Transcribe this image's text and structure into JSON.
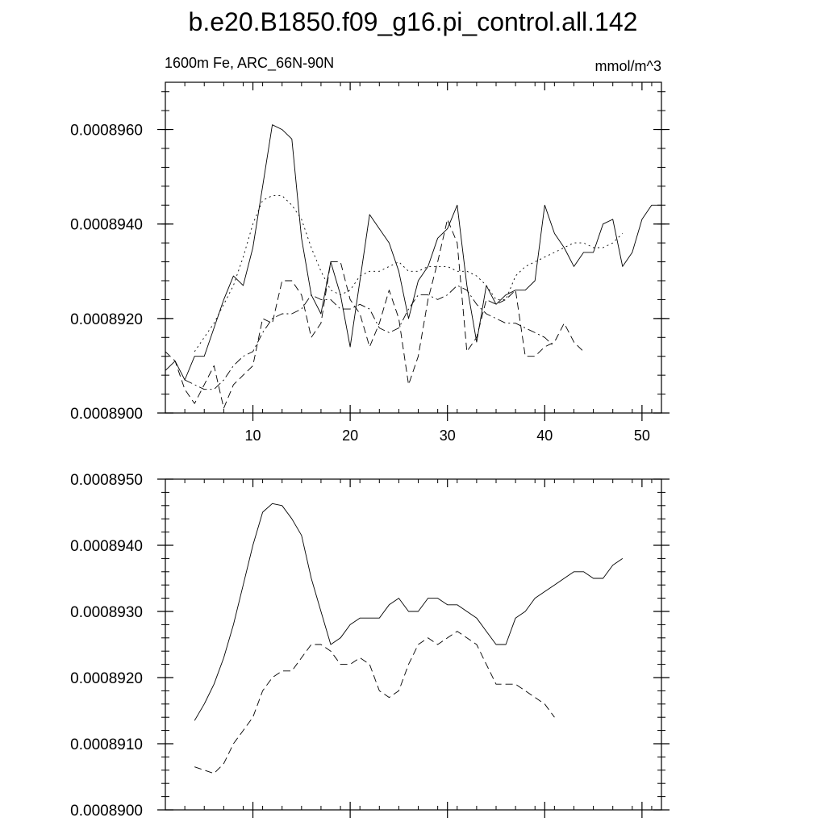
{
  "title": "b.e20.B1850.f09_g16.pi_control.all.142",
  "subtitle_left": "1600m Fe, ARC_66N-90N",
  "subtitle_right": "mmol/m^3",
  "chart_data": [
    {
      "type": "line",
      "xlim": [
        1,
        52
      ],
      "ylim": [
        0.00089,
        0.000897
      ],
      "xticks": [
        10,
        20,
        30,
        40,
        50
      ],
      "xtick_labels": [
        "10",
        "20",
        "30",
        "40",
        "50"
      ],
      "yticks": [
        0.00089,
        0.000892,
        0.000894,
        0.000896
      ],
      "ytick_labels": [
        "0.0008900",
        "0.0008920",
        "0.0008940",
        "0.0008960"
      ],
      "series": [
        {
          "style": "solid",
          "x": [
            1,
            2,
            3,
            4,
            5,
            6,
            7,
            8,
            9,
            10,
            11,
            12,
            13,
            14,
            15,
            16,
            17,
            18,
            19,
            20,
            21,
            22,
            23,
            24,
            25,
            26,
            27,
            28,
            29,
            30,
            31,
            32,
            33,
            34,
            35,
            36,
            37,
            38,
            39,
            40,
            41,
            42,
            43,
            44,
            45,
            46,
            47,
            48,
            49,
            50,
            51,
            52
          ],
          "y": [
            0.0008909,
            0.0008911,
            0.0008907,
            0.0008912,
            0.0008912,
            0.0008918,
            0.0008924,
            0.0008929,
            0.0008927,
            0.0008935,
            0.0008948,
            0.0008961,
            0.000896,
            0.0008958,
            0.0008937,
            0.0008925,
            0.0008921,
            0.0008932,
            0.0008925,
            0.0008914,
            0.0008928,
            0.0008942,
            0.0008939,
            0.0008936,
            0.000893,
            0.000892,
            0.0008928,
            0.0008931,
            0.0008937,
            0.0008939,
            0.0008944,
            0.0008927,
            0.0008915,
            0.0008927,
            0.0008923,
            0.0008925,
            0.0008926,
            0.0008926,
            0.0008928,
            0.0008944,
            0.0008938,
            0.0008935,
            0.0008931,
            0.0008934,
            0.0008934,
            0.000894,
            0.0008941,
            0.0008931,
            0.0008934,
            0.0008941,
            0.0008944,
            0.0008944
          ]
        },
        {
          "style": "dashed",
          "x": [
            1,
            2,
            3,
            4,
            5,
            6,
            7,
            8,
            9,
            10,
            11,
            12,
            13,
            14,
            15,
            16,
            17,
            18,
            19,
            20,
            21,
            22,
            23,
            24,
            25,
            26,
            27,
            28,
            29,
            30,
            31,
            32,
            33,
            34,
            35,
            36,
            37,
            38,
            39,
            40,
            41,
            42,
            43,
            44
          ],
          "y": [
            0.0008913,
            0.0008911,
            0.0008905,
            0.0008902,
            0.0008906,
            0.000891,
            0.0008901,
            0.0008906,
            0.0008908,
            0.000891,
            0.000892,
            0.0008919,
            0.0008928,
            0.0008928,
            0.0008925,
            0.0008916,
            0.0008919,
            0.0008932,
            0.0008932,
            0.0008924,
            0.0008921,
            0.0008914,
            0.0008919,
            0.0008926,
            0.000892,
            0.0008906,
            0.0008912,
            0.0008924,
            0.0008932,
            0.0008941,
            0.0008936,
            0.0008913,
            0.0008916,
            0.0008924,
            0.0008923,
            0.0008924,
            0.0008926,
            0.0008912,
            0.0008912,
            0.0008914,
            0.0008915,
            0.0008919,
            0.0008915,
            0.0008913
          ]
        },
        {
          "style": "dotted",
          "x": [
            4,
            5,
            6,
            7,
            8,
            9,
            10,
            11,
            12,
            13,
            14,
            15,
            16,
            17,
            18,
            19,
            20,
            21,
            22,
            23,
            24,
            25,
            26,
            27,
            28,
            29,
            30,
            31,
            32,
            33,
            34,
            35,
            36,
            37,
            38,
            39,
            40,
            41,
            42,
            43,
            44,
            45,
            46,
            47,
            48
          ],
          "y": [
            0.0008913,
            0.0008916,
            0.0008919,
            0.0008923,
            0.0008927,
            0.0008933,
            0.000894,
            0.0008945,
            0.0008946,
            0.0008946,
            0.0008944,
            0.0008941,
            0.0008935,
            0.000893,
            0.0008926,
            0.0008925,
            0.0008926,
            0.0008929,
            0.000893,
            0.000893,
            0.0008931,
            0.0008932,
            0.000893,
            0.000893,
            0.0008931,
            0.0008931,
            0.0008931,
            0.000893,
            0.000893,
            0.0008929,
            0.0008927,
            0.0008924,
            0.0008924,
            0.0008929,
            0.0008931,
            0.0008932,
            0.0008933,
            0.0008934,
            0.0008935,
            0.0008936,
            0.0008936,
            0.0008935,
            0.0008935,
            0.0008936,
            0.0008938
          ]
        },
        {
          "style": "dashdot",
          "x": [
            3,
            4,
            5,
            6,
            7,
            8,
            9,
            10,
            11,
            12,
            13,
            14,
            15,
            16,
            17,
            18,
            19,
            20,
            21,
            22,
            23,
            24,
            25,
            26,
            27,
            28,
            29,
            30,
            31,
            32,
            33,
            34,
            35,
            36,
            37,
            38,
            39,
            40,
            41
          ],
          "y": [
            0.0008907,
            0.0008906,
            0.0008905,
            0.0008905,
            0.0008907,
            0.000891,
            0.0008912,
            0.0008913,
            0.0008917,
            0.000892,
            0.0008921,
            0.0008921,
            0.0008922,
            0.0008925,
            0.0008924,
            0.0008924,
            0.0008922,
            0.0008922,
            0.0008923,
            0.0008922,
            0.0008918,
            0.0008917,
            0.0008918,
            0.0008922,
            0.0008925,
            0.0008925,
            0.0008924,
            0.0008925,
            0.0008927,
            0.0008926,
            0.0008923,
            0.0008921,
            0.000892,
            0.0008919,
            0.0008919,
            0.0008918,
            0.0008917,
            0.0008916,
            0.0008914
          ]
        }
      ]
    },
    {
      "type": "line",
      "xlim": [
        1,
        52
      ],
      "ylim": [
        0.00089,
        0.000895
      ],
      "xticks": [
        10,
        20,
        30,
        40,
        50
      ],
      "yticks": [
        0.00089,
        0.000891,
        0.000892,
        0.000893,
        0.000894,
        0.000895
      ],
      "ytick_labels": [
        "0.0008900",
        "0.0008910",
        "0.0008920",
        "0.0008930",
        "0.0008940",
        "0.0008950"
      ],
      "series": [
        {
          "style": "solid",
          "x": [
            4,
            5,
            6,
            7,
            8,
            9,
            10,
            11,
            12,
            13,
            14,
            15,
            16,
            17,
            18,
            19,
            20,
            21,
            22,
            23,
            24,
            25,
            26,
            27,
            28,
            29,
            30,
            31,
            32,
            33,
            34,
            35,
            36,
            37,
            38,
            39,
            40,
            41,
            42,
            43,
            44,
            45,
            46,
            47,
            48
          ],
          "y": [
            0.00089135,
            0.0008916,
            0.0008919,
            0.0008923,
            0.0008928,
            0.0008934,
            0.000894,
            0.0008945,
            0.00089463,
            0.0008946,
            0.0008944,
            0.00089415,
            0.0008935,
            0.000893,
            0.0008925,
            0.0008926,
            0.0008928,
            0.0008929,
            0.0008929,
            0.0008929,
            0.0008931,
            0.0008932,
            0.000893,
            0.000893,
            0.0008932,
            0.0008932,
            0.0008931,
            0.0008931,
            0.000893,
            0.0008929,
            0.0008927,
            0.0008925,
            0.0008925,
            0.0008929,
            0.000893,
            0.0008932,
            0.0008933,
            0.0008934,
            0.0008935,
            0.0008936,
            0.0008936,
            0.0008935,
            0.0008935,
            0.0008937,
            0.0008938
          ]
        },
        {
          "style": "dashed",
          "x": [
            4,
            5,
            6,
            7,
            8,
            9,
            10,
            11,
            12,
            13,
            14,
            15,
            16,
            17,
            18,
            19,
            20,
            21,
            22,
            23,
            24,
            25,
            26,
            27,
            28,
            29,
            30,
            31,
            32,
            33,
            34,
            35,
            36,
            37,
            38,
            39,
            40,
            41
          ],
          "y": [
            0.00089065,
            0.0008906,
            0.00089055,
            0.0008907,
            0.000891,
            0.0008912,
            0.0008914,
            0.0008918,
            0.000892,
            0.0008921,
            0.0008921,
            0.0008923,
            0.0008925,
            0.0008925,
            0.0008924,
            0.0008922,
            0.0008922,
            0.0008923,
            0.0008922,
            0.0008918,
            0.0008917,
            0.0008918,
            0.0008922,
            0.0008925,
            0.0008926,
            0.0008925,
            0.0008926,
            0.0008927,
            0.0008926,
            0.0008925,
            0.0008922,
            0.0008919,
            0.0008919,
            0.0008919,
            0.0008918,
            0.0008917,
            0.0008916,
            0.0008914
          ]
        }
      ]
    }
  ]
}
